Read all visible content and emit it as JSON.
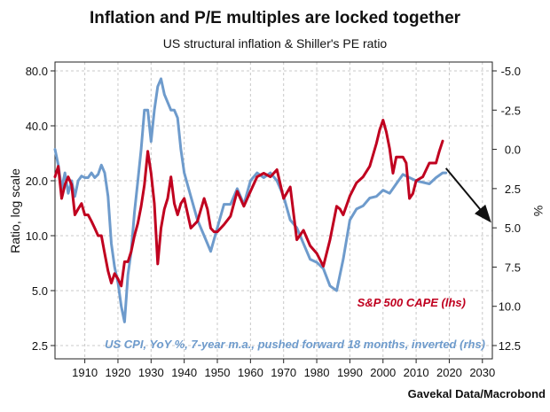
{
  "chart_data": {
    "type": "line",
    "title": "Inflation and P/E multiples are locked together",
    "subtitle": "US structural inflation & Shiller's PE ratio",
    "ylabel_left": "Ratio, log scale",
    "ylabel_right": "%",
    "source": "Gavekal Data/Macrobond",
    "xlim": [
      1901,
      2033
    ],
    "x_ticks": [
      "1910",
      "1920",
      "1930",
      "1940",
      "1950",
      "1960",
      "1970",
      "1980",
      "1990",
      "2000",
      "2010",
      "2020",
      "2030"
    ],
    "y_left": {
      "scale": "log",
      "ylim": [
        2.5,
        80
      ],
      "ticks": [
        {
          "value": 80,
          "label": "80.0"
        },
        {
          "value": 40,
          "label": "40.0"
        },
        {
          "value": 20,
          "label": "20.0"
        },
        {
          "value": 10,
          "label": "10.0"
        },
        {
          "value": 5,
          "label": "5.0"
        },
        {
          "value": 2.5,
          "label": "2.5"
        }
      ]
    },
    "y_right": {
      "scale": "linear",
      "inverted": true,
      "ylim": [
        -5,
        12.5
      ],
      "ticks": [
        {
          "value": -5,
          "label": "-5.0"
        },
        {
          "value": -2.5,
          "label": "-2.5"
        },
        {
          "value": 0,
          "label": "0.0"
        },
        {
          "value": 2.5,
          "label": "2.5"
        },
        {
          "value": 5,
          "label": "5.0"
        },
        {
          "value": 7.5,
          "label": "7.5"
        },
        {
          "value": 10,
          "label": "10.0"
        },
        {
          "value": 12.5,
          "label": "12.5"
        }
      ]
    },
    "grid": true,
    "series": [
      {
        "name": "S&P 500 CAPE (lhs)",
        "color": "#c0001f",
        "axis": "left",
        "x": [
          1901,
          1902,
          1903,
          1904,
          1905,
          1906,
          1907,
          1908,
          1909,
          1910,
          1911,
          1912,
          1913,
          1914,
          1915,
          1916,
          1917,
          1918,
          1919,
          1920,
          1921,
          1922,
          1923,
          1924,
          1925,
          1926,
          1927,
          1928,
          1929,
          1930,
          1931,
          1932,
          1933,
          1934,
          1935,
          1936,
          1937,
          1938,
          1939,
          1940,
          1942,
          1944,
          1946,
          1947,
          1948,
          1949,
          1950,
          1952,
          1954,
          1956,
          1958,
          1960,
          1962,
          1964,
          1966,
          1968,
          1970,
          1972,
          1974,
          1976,
          1978,
          1980,
          1982,
          1984,
          1986,
          1987,
          1988,
          1990,
          1992,
          1994,
          1996,
          1998,
          1999,
          2000,
          2001,
          2002,
          2003,
          2004,
          2006,
          2007,
          2008,
          2009,
          2010,
          2012,
          2014,
          2016,
          2017,
          2018
        ],
        "y": [
          21,
          24,
          16,
          19,
          21,
          19,
          13,
          14,
          15,
          13,
          13,
          12,
          11,
          10,
          10,
          8,
          6.4,
          5.5,
          6.2,
          5.8,
          5.3,
          7.2,
          7.2,
          8.2,
          10,
          11.7,
          14.5,
          19,
          29,
          22,
          15,
          7,
          11,
          14,
          16,
          21,
          15,
          13,
          15,
          16,
          11,
          12,
          16,
          14,
          11,
          10.5,
          10.5,
          11.5,
          12.8,
          17.5,
          14.5,
          17.5,
          21,
          22,
          21,
          23,
          16,
          18.5,
          9.5,
          10.7,
          8.8,
          8,
          6.8,
          9.5,
          14.5,
          14,
          13,
          16.5,
          19.5,
          21,
          24,
          32,
          38,
          43,
          37,
          30,
          22,
          27,
          27,
          25,
          16,
          17,
          20,
          21,
          25,
          25,
          29,
          33
        ]
      },
      {
        "name": "US CPI, YoY %, 7-year m.a., pushed forward 18 months, inverted (rhs)",
        "color": "#6e9bcc",
        "axis": "right",
        "x": [
          1901,
          1902,
          1903,
          1904,
          1905,
          1906,
          1907,
          1908,
          1909,
          1910,
          1911,
          1912,
          1913,
          1914,
          1915,
          1916,
          1917,
          1918,
          1919,
          1920,
          1921,
          1922,
          1923,
          1924,
          1925,
          1926,
          1927,
          1928,
          1929,
          1930,
          1931,
          1932,
          1933,
          1934,
          1935,
          1936,
          1937,
          1938,
          1939,
          1940,
          1942,
          1944,
          1946,
          1948,
          1950,
          1952,
          1954,
          1956,
          1958,
          1960,
          1962,
          1964,
          1966,
          1968,
          1970,
          1972,
          1974,
          1976,
          1978,
          1980,
          1982,
          1984,
          1986,
          1988,
          1990,
          1992,
          1994,
          1996,
          1998,
          2000,
          2002,
          2004,
          2006,
          2008,
          2010,
          2012,
          2014,
          2016,
          2018,
          2019
        ],
        "y": [
          0,
          1,
          2.5,
          1.5,
          2.8,
          2,
          3,
          2,
          1.7,
          1.8,
          1.8,
          1.5,
          1.8,
          1.6,
          1,
          1.5,
          3,
          6,
          7.5,
          8.5,
          10,
          11,
          8,
          6.5,
          4,
          2,
          0,
          -2.5,
          -2.5,
          -0.5,
          -2.5,
          -4,
          -4.5,
          -3.5,
          -3,
          -2.5,
          -2.5,
          -2,
          0,
          1.5,
          3,
          4.5,
          5.5,
          6.5,
          5,
          3.5,
          3.5,
          2.5,
          3.5,
          2,
          1.5,
          1.8,
          1.5,
          2,
          3,
          4.5,
          5,
          6,
          7,
          7.2,
          7.6,
          8.7,
          9,
          7,
          4.5,
          3.8,
          3.6,
          3.1,
          3,
          2.6,
          2.8,
          2.2,
          1.6,
          1.8,
          2,
          2.1,
          2.2,
          1.8,
          1.5,
          1.5
        ]
      }
    ],
    "annotations": [
      {
        "type": "arrow",
        "from": [
          2019,
          1.2
        ],
        "to": [
          2032,
          4.5
        ],
        "axis": "right"
      }
    ]
  }
}
